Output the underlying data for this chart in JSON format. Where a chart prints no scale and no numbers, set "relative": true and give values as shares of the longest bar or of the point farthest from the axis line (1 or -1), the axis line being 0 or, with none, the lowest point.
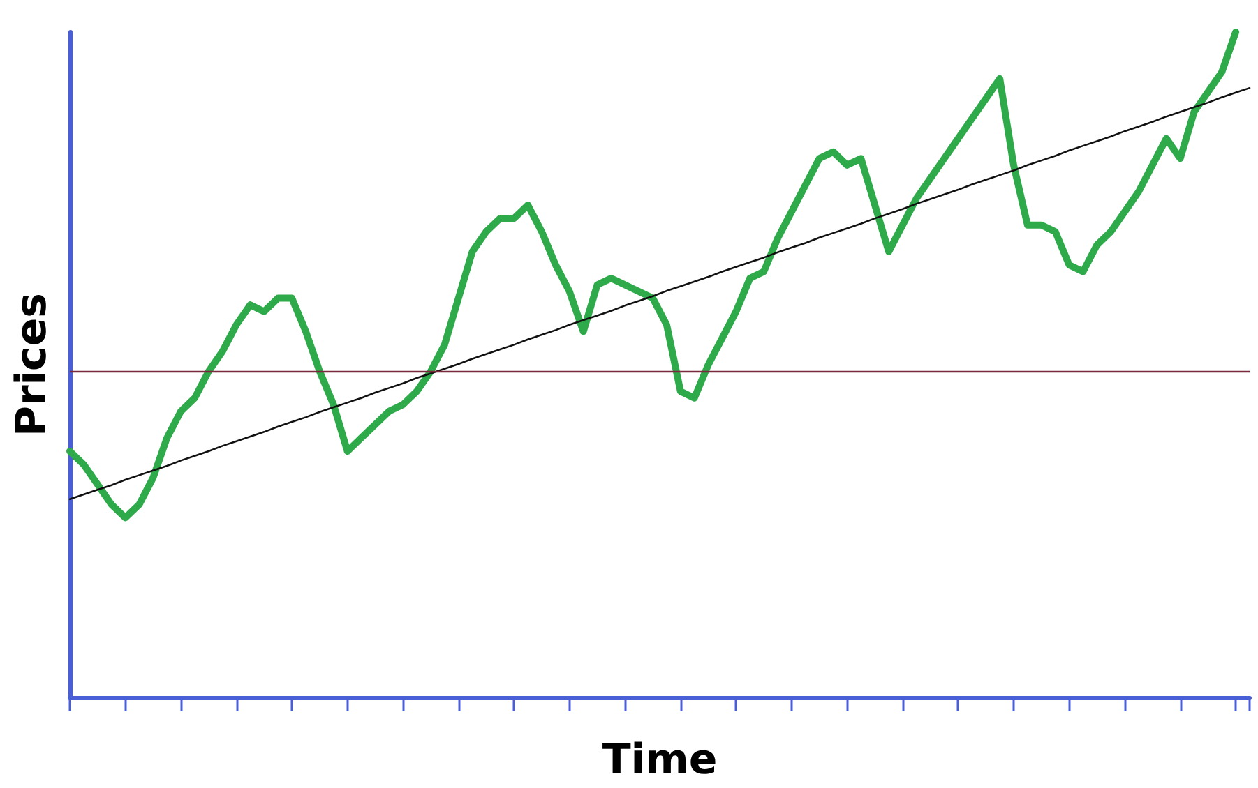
{
  "chart_data": {
    "type": "line",
    "relative": true,
    "xlabel": "Time",
    "ylabel": "Prices",
    "grid": false,
    "marker": "none",
    "line_style": "solid",
    "categories": [
      null,
      null,
      null,
      null,
      null,
      null,
      null,
      null,
      null,
      null,
      null,
      null,
      null,
      null,
      null,
      null,
      null,
      null,
      null,
      null,
      null,
      null,
      null,
      null,
      null,
      null,
      null,
      null,
      null,
      null,
      null,
      null,
      null,
      null,
      null,
      null,
      null,
      null,
      null,
      null,
      null,
      null,
      null,
      null,
      null,
      null,
      null,
      null,
      null,
      null,
      null,
      null,
      null,
      null,
      null,
      null,
      null,
      null,
      null,
      null,
      null,
      null,
      null,
      null,
      null,
      null,
      null,
      null,
      null,
      null,
      null,
      null,
      null,
      null,
      null,
      null,
      null,
      null,
      null,
      null,
      null,
      null,
      null,
      null,
      null,
      null
    ],
    "series": [
      {
        "color": "#2eaa4a",
        "values": [
          0.37,
          0.35,
          0.32,
          0.29,
          0.27,
          0.29,
          0.33,
          0.39,
          0.43,
          0.45,
          0.49,
          0.52,
          0.56,
          0.59,
          0.58,
          0.6,
          0.6,
          0.55,
          0.49,
          0.44,
          0.37,
          0.39,
          0.41,
          0.43,
          0.44,
          0.46,
          0.49,
          0.53,
          0.6,
          0.67,
          0.7,
          0.72,
          0.72,
          0.74,
          0.7,
          0.65,
          0.61,
          0.55,
          0.62,
          0.63,
          0.62,
          0.61,
          0.6,
          0.56,
          0.46,
          0.45,
          0.5,
          0.54,
          0.58,
          0.63,
          0.64,
          0.69,
          0.73,
          0.77,
          0.81,
          0.82,
          0.8,
          0.81,
          0.74,
          0.67,
          0.71,
          0.75,
          0.78,
          0.81,
          0.84,
          0.87,
          0.9,
          0.93,
          0.8,
          0.71,
          0.71,
          0.7,
          0.65,
          0.64,
          0.68,
          0.7,
          0.73,
          0.76,
          0.8,
          0.84,
          0.81,
          0.88,
          0.91,
          0.94,
          1.0,
          null
        ]
      },
      {
        "type": "line",
        "color": "#111111",
        "values": [
          0.298,
          0.305,
          0.312,
          0.319,
          0.327,
          0.334,
          0.341,
          0.348,
          0.356,
          0.363,
          0.37,
          0.378,
          0.385,
          0.392,
          0.399,
          0.407,
          0.414,
          0.421,
          0.429,
          0.436,
          0.443,
          0.45,
          0.458,
          0.465,
          0.472,
          0.48,
          0.487,
          0.494,
          0.501,
          0.509,
          0.516,
          0.523,
          0.53,
          0.538,
          0.545,
          0.552,
          0.56,
          0.567,
          0.574,
          0.581,
          0.589,
          0.596,
          0.603,
          0.611,
          0.618,
          0.625,
          0.632,
          0.64,
          0.647,
          0.654,
          0.661,
          0.669,
          0.676,
          0.683,
          0.691,
          0.698,
          0.705,
          0.712,
          0.72,
          0.727,
          0.734,
          0.742,
          0.749,
          0.756,
          0.763,
          0.771,
          0.778,
          0.785,
          0.792,
          0.8,
          0.807,
          0.814,
          0.822,
          0.829,
          0.836,
          0.843,
          0.851,
          0.858,
          0.865,
          0.873,
          0.88,
          0.887,
          0.894,
          0.902,
          0.909,
          0.916
        ]
      }
    ],
    "ref_lines": [
      {
        "axis": "y",
        "value": 0.49,
        "color": "#7a2a3c"
      }
    ]
  }
}
